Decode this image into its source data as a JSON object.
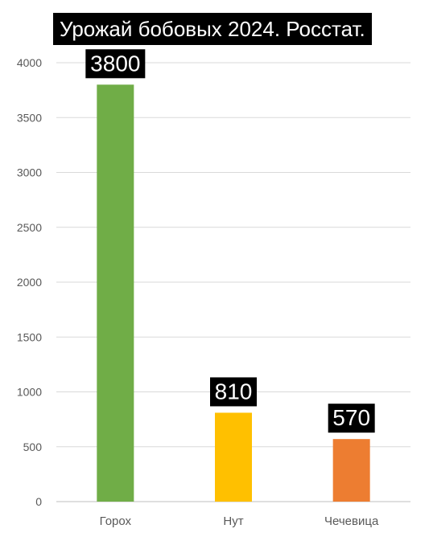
{
  "chart_data": {
    "type": "bar",
    "title": "Урожай бобовых 2024. Росстат.",
    "categories": [
      "Горох",
      "Нут",
      "Чечевица"
    ],
    "values": [
      3800,
      810,
      570
    ],
    "colors": [
      "#70ad47",
      "#ffc000",
      "#ed7d31"
    ],
    "data_labels": [
      "3800",
      "810",
      "570"
    ],
    "ylim": [
      0,
      4000
    ],
    "yticks": [
      0,
      500,
      1000,
      1500,
      2000,
      2500,
      3000,
      3500,
      4000
    ],
    "grid": true,
    "legend": "none",
    "xlabel": "",
    "ylabel": ""
  }
}
